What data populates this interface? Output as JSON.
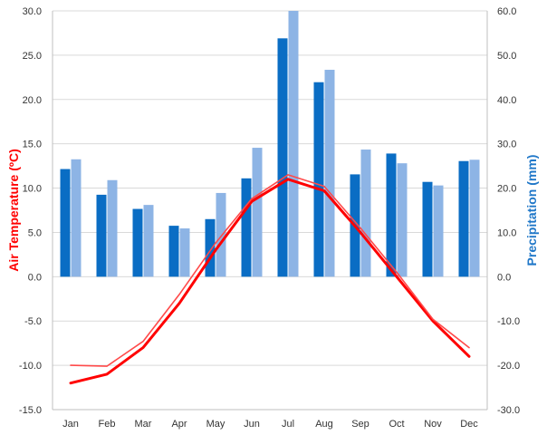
{
  "chart_data": {
    "type": "bar",
    "categories": [
      "Jan",
      "Feb",
      "Mar",
      "Apr",
      "May",
      "Jun",
      "Jul",
      "Aug",
      "Sep",
      "Oct",
      "Nov",
      "Dec"
    ],
    "left_axis": {
      "label": "Air Temperature (ºC)",
      "ylim": [
        -15,
        30
      ],
      "ticks": [
        "-15.0",
        "-10.0",
        "-5.0",
        "0.0",
        "5.0",
        "10.0",
        "15.0",
        "20.0",
        "25.0",
        "30.0"
      ],
      "color": "#ff0000"
    },
    "right_axis": {
      "label": "Precipitation (mm)",
      "ylim": [
        -30,
        60
      ],
      "ticks": [
        "-30.0",
        "-20.0",
        "-10.0",
        "0.0",
        "10.0",
        "20.0",
        "30.0",
        "40.0",
        "50.0",
        "60.0"
      ],
      "color": "#1f77c8"
    },
    "grid": true,
    "series": [
      {
        "type": "bar",
        "axis": "right",
        "color": "#0a6dc4",
        "values": [
          24.3,
          18.5,
          15.3,
          11.5,
          13.0,
          22.2,
          53.8,
          43.9,
          23.1,
          27.8,
          21.4,
          26.1
        ]
      },
      {
        "type": "bar",
        "axis": "right",
        "color": "#8db4e5",
        "values": [
          26.5,
          21.8,
          16.2,
          10.9,
          18.9,
          29.1,
          60.0,
          46.7,
          28.7,
          25.6,
          20.6,
          26.4
        ]
      },
      {
        "type": "line",
        "axis": "left",
        "color": "#ff0000",
        "width": 3,
        "values": [
          -12.0,
          -11.0,
          -8.0,
          -3.0,
          3.0,
          8.5,
          11.0,
          9.7,
          5.0,
          0.0,
          -5.0,
          -9.0
        ]
      },
      {
        "type": "line",
        "axis": "left",
        "color": "#ff4a4a",
        "width": 1.6,
        "values": [
          -10.0,
          -10.1,
          -7.3,
          -2.0,
          3.8,
          8.8,
          11.5,
          10.2,
          5.5,
          0.5,
          -4.8,
          -8.0
        ]
      }
    ]
  }
}
